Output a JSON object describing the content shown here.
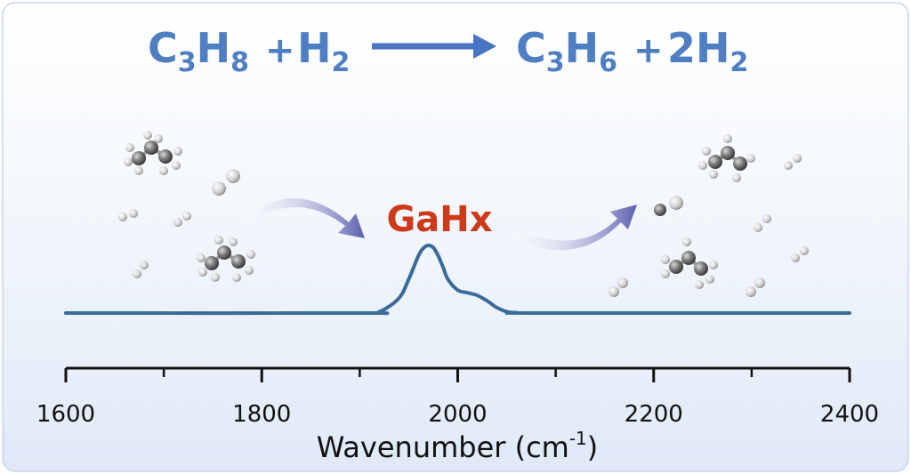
{
  "reaction": {
    "reactant_1": {
      "base": "C",
      "sub1": "3",
      "mid": "H",
      "sub2": "8"
    },
    "plus_1": "+",
    "reactant_2": {
      "base": "H",
      "sub": "2"
    },
    "product_1": {
      "base": "C",
      "sub1": "3",
      "mid": "H",
      "sub2": "6"
    },
    "plus_2": "+",
    "product_2": {
      "base": "2H",
      "sub": "2"
    }
  },
  "center_label": "GaHx",
  "colors": {
    "reaction_text": "#4f7fc2",
    "arrow": "#4a74c4",
    "label": "#cc3a1a",
    "spectrum": "#3a6a99",
    "background_top": "#ffffff",
    "background_bottom": "#e3ecf8"
  },
  "chart_data": {
    "type": "line",
    "xlabel_main": "Wavenumber (cm",
    "xlabel_sup": "-1",
    "xlabel_close": ")",
    "xlim": [
      1600,
      2400
    ],
    "major_ticks": [
      {
        "value": 1600,
        "label": "1600"
      },
      {
        "value": 1800,
        "label": "1800"
      },
      {
        "value": 2000,
        "label": "2000"
      },
      {
        "value": 2200,
        "label": "2200"
      },
      {
        "value": 2400,
        "label": "2400"
      }
    ],
    "minor_ticks": [
      1700,
      1900,
      2100,
      2300
    ],
    "series": [
      {
        "x": [
          1600,
          1900,
          1920,
          1940,
          1950,
          1960,
          1965,
          1970,
          1975,
          1980,
          1985,
          1990,
          2000,
          2010,
          2020,
          2030,
          2040,
          2050,
          2060,
          2080,
          2400
        ],
        "y": [
          0,
          0,
          0.02,
          0.22,
          0.5,
          0.85,
          0.96,
          1.0,
          0.97,
          0.85,
          0.68,
          0.5,
          0.34,
          0.3,
          0.26,
          0.18,
          0.08,
          0.02,
          0.005,
          0,
          0
        ]
      }
    ]
  }
}
